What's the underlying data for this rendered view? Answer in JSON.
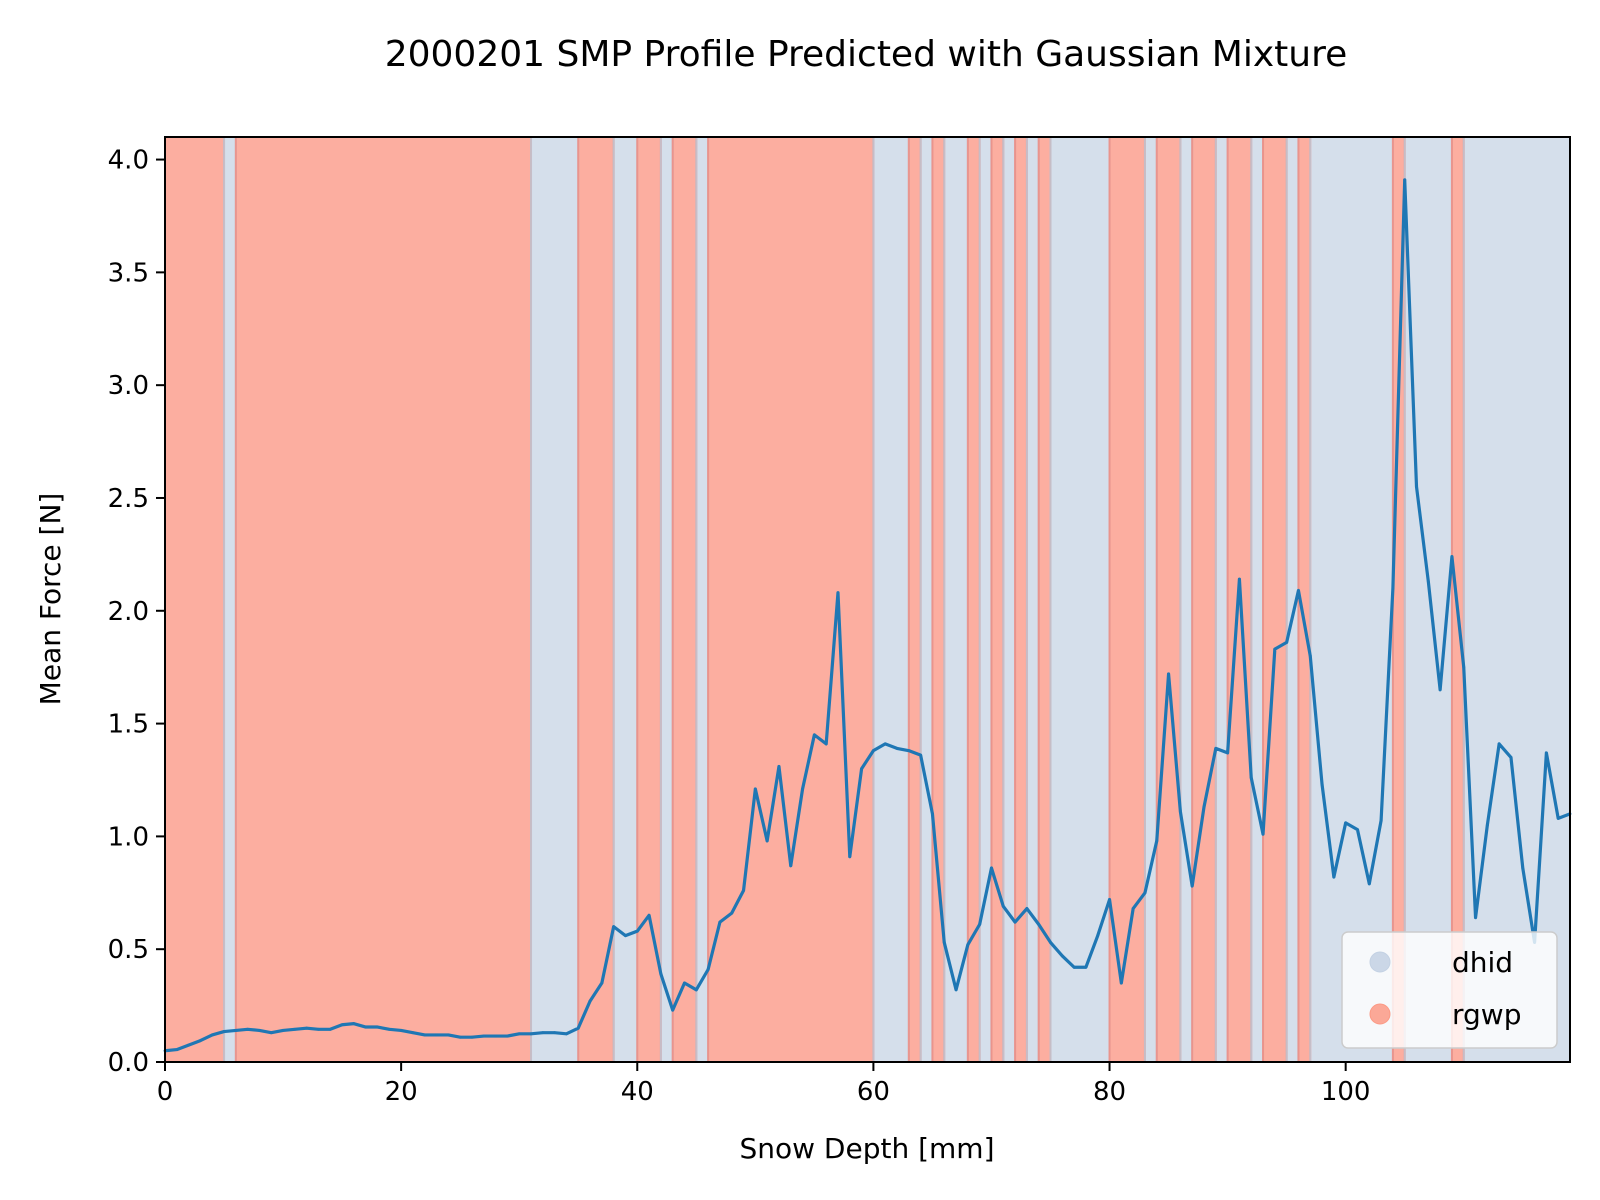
{
  "chart_data": {
    "type": "line",
    "title": "2000201 SMP Profile Predicted with Gaussian Mixture",
    "xlabel": "Snow Depth [mm]",
    "ylabel": "Mean Force [N]",
    "xlim": [
      0,
      119
    ],
    "ylim": [
      0,
      4.1
    ],
    "xticks": [
      0,
      20,
      40,
      60,
      80,
      100
    ],
    "yticks": [
      0.0,
      0.5,
      1.0,
      1.5,
      2.0,
      2.5,
      3.0,
      3.5,
      4.0
    ],
    "xtick_labels": [
      "0",
      "20",
      "40",
      "60",
      "80",
      "100"
    ],
    "ytick_labels": [
      "0.0",
      "0.5",
      "1.0",
      "1.5",
      "2.0",
      "2.5",
      "3.0",
      "3.5",
      "4.0"
    ],
    "grid": false,
    "legend_placement": "lower-right",
    "legend": [
      {
        "label": "dhid",
        "color": "#c3d1e3"
      },
      {
        "label": "rgwp",
        "color": "#fb9a85"
      }
    ],
    "class_colors": {
      "dhid": "#d5dfeb",
      "rgwp": "#fcaea0",
      "rgwp_edge": "#f2877a",
      "dhid_edge": "#bcc7d6"
    },
    "line_color": "#1f77b4",
    "segments": [
      {
        "class": "rgwp",
        "start": 0,
        "end": 5
      },
      {
        "class": "dhid",
        "start": 5,
        "end": 6
      },
      {
        "class": "rgwp",
        "start": 6,
        "end": 31
      },
      {
        "class": "dhid",
        "start": 31,
        "end": 35
      },
      {
        "class": "rgwp",
        "start": 35,
        "end": 38
      },
      {
        "class": "dhid",
        "start": 38,
        "end": 40
      },
      {
        "class": "rgwp",
        "start": 40,
        "end": 42
      },
      {
        "class": "dhid",
        "start": 42,
        "end": 43
      },
      {
        "class": "rgwp",
        "start": 43,
        "end": 45
      },
      {
        "class": "dhid",
        "start": 45,
        "end": 46
      },
      {
        "class": "rgwp",
        "start": 46,
        "end": 60
      },
      {
        "class": "dhid",
        "start": 60,
        "end": 63
      },
      {
        "class": "rgwp",
        "start": 63,
        "end": 64
      },
      {
        "class": "dhid",
        "start": 64,
        "end": 65
      },
      {
        "class": "rgwp",
        "start": 65,
        "end": 66
      },
      {
        "class": "dhid",
        "start": 66,
        "end": 68
      },
      {
        "class": "rgwp",
        "start": 68,
        "end": 69
      },
      {
        "class": "dhid",
        "start": 69,
        "end": 70
      },
      {
        "class": "rgwp",
        "start": 70,
        "end": 71
      },
      {
        "class": "dhid",
        "start": 71,
        "end": 72
      },
      {
        "class": "rgwp",
        "start": 72,
        "end": 73
      },
      {
        "class": "dhid",
        "start": 73,
        "end": 74
      },
      {
        "class": "rgwp",
        "start": 74,
        "end": 75
      },
      {
        "class": "dhid",
        "start": 75,
        "end": 80
      },
      {
        "class": "rgwp",
        "start": 80,
        "end": 83
      },
      {
        "class": "dhid",
        "start": 83,
        "end": 84
      },
      {
        "class": "rgwp",
        "start": 84,
        "end": 86
      },
      {
        "class": "dhid",
        "start": 86,
        "end": 87
      },
      {
        "class": "rgwp",
        "start": 87,
        "end": 89
      },
      {
        "class": "dhid",
        "start": 89,
        "end": 90
      },
      {
        "class": "rgwp",
        "start": 90,
        "end": 92
      },
      {
        "class": "dhid",
        "start": 92,
        "end": 93
      },
      {
        "class": "rgwp",
        "start": 93,
        "end": 95
      },
      {
        "class": "dhid",
        "start": 95,
        "end": 96
      },
      {
        "class": "rgwp",
        "start": 96,
        "end": 97
      },
      {
        "class": "dhid",
        "start": 97,
        "end": 104
      },
      {
        "class": "rgwp",
        "start": 104,
        "end": 105
      },
      {
        "class": "dhid",
        "start": 105,
        "end": 109
      },
      {
        "class": "rgwp",
        "start": 109,
        "end": 110
      },
      {
        "class": "dhid",
        "start": 110,
        "end": 119
      }
    ],
    "series": [
      {
        "x": [
          0,
          1,
          2,
          3,
          4,
          5,
          6,
          7,
          8,
          9,
          10,
          11,
          12,
          13,
          14,
          15,
          16,
          17,
          18,
          19,
          20,
          21,
          22,
          23,
          24,
          25,
          26,
          27,
          28,
          29,
          30,
          31,
          32,
          33,
          34,
          35,
          36,
          37,
          38,
          39,
          40,
          41,
          42,
          43,
          44,
          45,
          46,
          47,
          48,
          49,
          50,
          51,
          52,
          53,
          54,
          55,
          56,
          57,
          58,
          59,
          60,
          61,
          62,
          63,
          64,
          65,
          66,
          67,
          68,
          69,
          70,
          71,
          72,
          73,
          74,
          75,
          76,
          77,
          78,
          79,
          80,
          81,
          82,
          83,
          84,
          85,
          86,
          87,
          88,
          89,
          90,
          91,
          92,
          93,
          94,
          95,
          96,
          97,
          98,
          99,
          100,
          101,
          102,
          103,
          104,
          105,
          106,
          107,
          108,
          109,
          110,
          111,
          112,
          113,
          114,
          115,
          116,
          117,
          118,
          119
        ],
        "values": [
          0.05,
          0.055,
          0.075,
          0.095,
          0.12,
          0.135,
          0.14,
          0.145,
          0.14,
          0.13,
          0.14,
          0.145,
          0.15,
          0.145,
          0.145,
          0.165,
          0.17,
          0.155,
          0.155,
          0.145,
          0.14,
          0.13,
          0.12,
          0.12,
          0.12,
          0.11,
          0.11,
          0.115,
          0.115,
          0.115,
          0.125,
          0.125,
          0.13,
          0.13,
          0.125,
          0.15,
          0.27,
          0.35,
          0.6,
          0.56,
          0.58,
          0.65,
          0.39,
          0.23,
          0.35,
          0.32,
          0.41,
          0.62,
          0.66,
          0.76,
          1.21,
          0.98,
          1.31,
          0.87,
          1.21,
          1.45,
          1.41,
          2.08,
          0.91,
          1.3,
          1.38,
          1.41,
          1.39,
          1.38,
          1.36,
          1.1,
          0.53,
          0.32,
          0.52,
          0.61,
          0.86,
          0.69,
          0.62,
          0.68,
          0.61,
          0.53,
          0.47,
          0.42,
          0.42,
          0.56,
          0.72,
          0.35,
          0.68,
          0.75,
          0.98,
          1.72,
          1.11,
          0.78,
          1.13,
          1.39,
          1.37,
          2.14,
          1.26,
          1.01,
          1.83,
          1.86,
          2.09,
          1.8,
          1.23,
          0.82,
          1.06,
          1.03,
          0.79,
          1.07,
          2.1,
          3.91,
          2.55,
          2.13,
          1.65,
          2.24,
          1.75,
          0.64,
          1.05,
          1.41,
          1.35,
          0.86,
          0.53,
          1.37,
          1.08,
          1.1
        ]
      }
    ]
  }
}
